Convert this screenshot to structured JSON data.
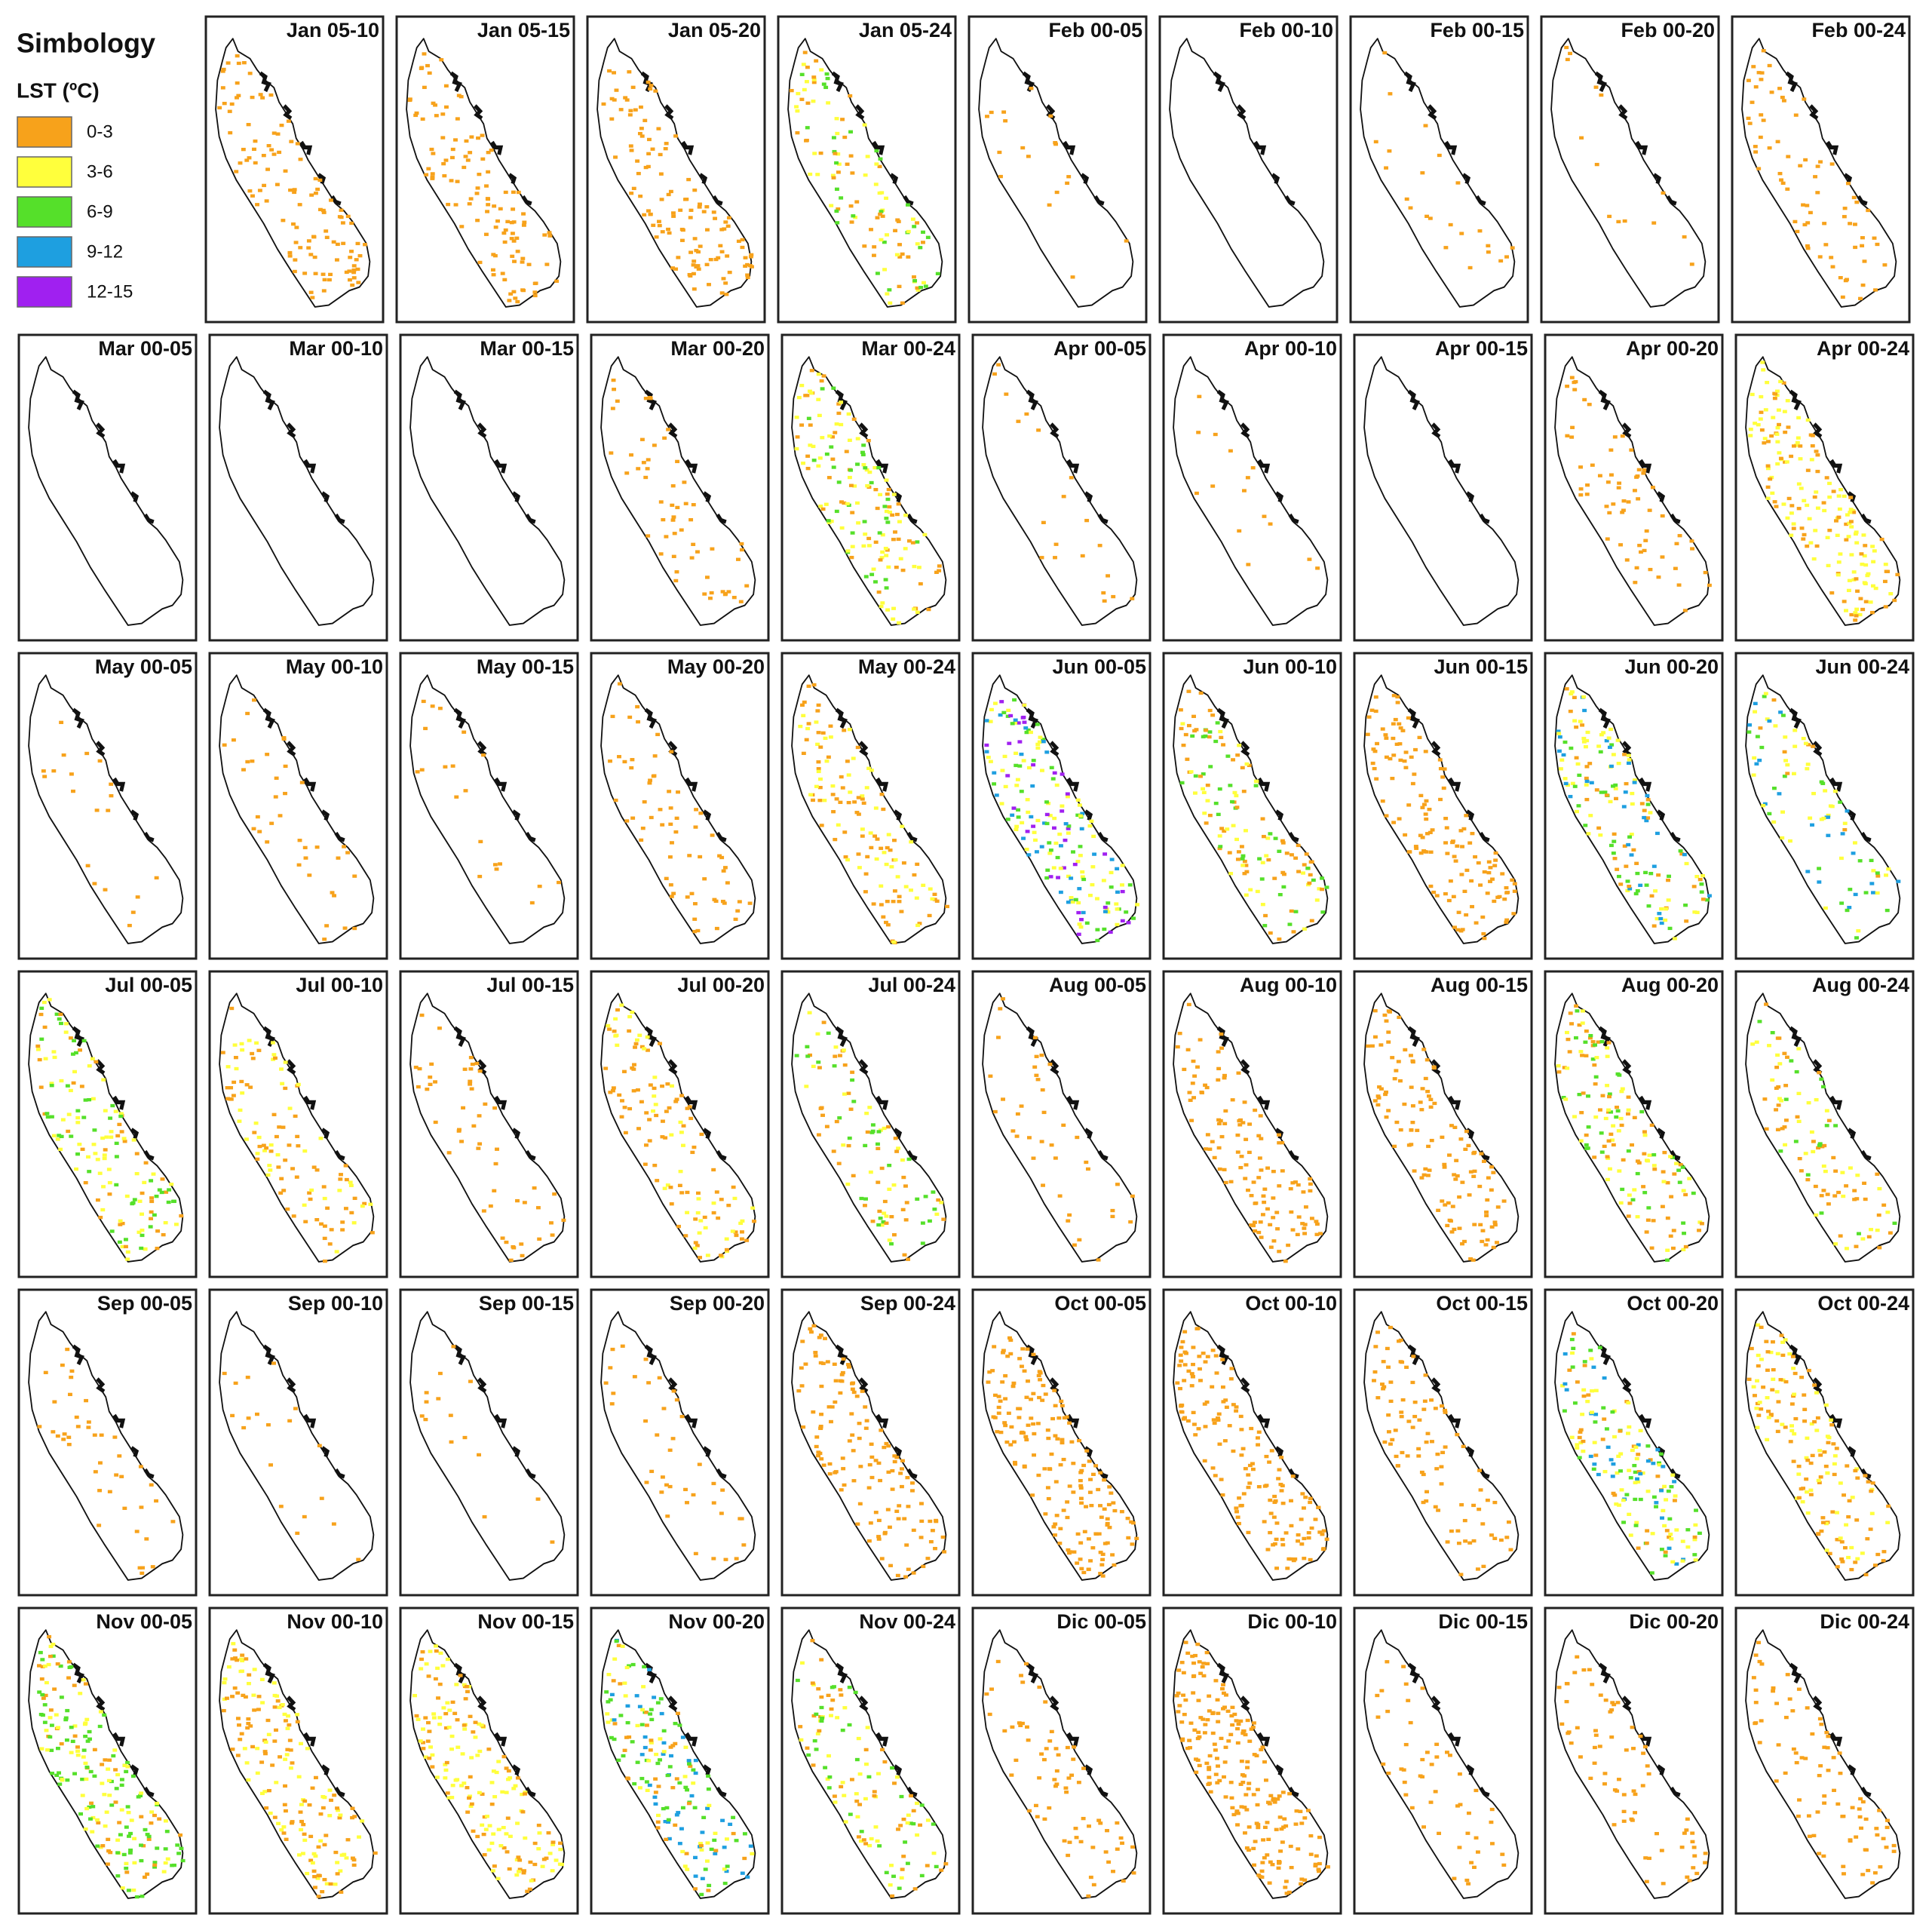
{
  "legend": {
    "title": "Simbology",
    "subtitle": "LST (ºC)",
    "classes": [
      {
        "label": "0-3",
        "color": "#f7a21b"
      },
      {
        "label": "3-6",
        "color": "#ffff3c"
      },
      {
        "label": "6-9",
        "color": "#55e02a"
      },
      {
        "label": "9-12",
        "color": "#1e9fe0"
      },
      {
        "label": "12-15",
        "color": "#a020f0"
      }
    ]
  },
  "panels": [
    {
      "title": "Jan 05-10"
    },
    {
      "title": "Jan 05-15"
    },
    {
      "title": "Jan 05-20"
    },
    {
      "title": "Jan 05-24"
    },
    {
      "title": "Feb 00-05"
    },
    {
      "title": "Feb 00-10"
    },
    {
      "title": "Feb 00-15"
    },
    {
      "title": "Feb 00-20"
    },
    {
      "title": "Feb 00-24"
    },
    {
      "title": "Mar 00-05"
    },
    {
      "title": "Mar 00-10"
    },
    {
      "title": "Mar 00-15"
    },
    {
      "title": "Mar 00-20"
    },
    {
      "title": "Mar 00-24"
    },
    {
      "title": "Apr 00-05"
    },
    {
      "title": "Apr 00-10"
    },
    {
      "title": "Apr 00-15"
    },
    {
      "title": "Apr 00-20"
    },
    {
      "title": "Apr 00-24"
    },
    {
      "title": "May 00-05"
    },
    {
      "title": "May 00-10"
    },
    {
      "title": "May 00-15"
    },
    {
      "title": "May 00-20"
    },
    {
      "title": "May 00-24"
    },
    {
      "title": "Jun 00-05"
    },
    {
      "title": "Jun 00-10"
    },
    {
      "title": "Jun 00-15"
    },
    {
      "title": "Jun 00-20"
    },
    {
      "title": "Jun 00-24"
    },
    {
      "title": "Jul 00-05"
    },
    {
      "title": "Jul 00-10"
    },
    {
      "title": "Jul 00-15"
    },
    {
      "title": "Jul 00-20"
    },
    {
      "title": "Jul 00-24"
    },
    {
      "title": "Aug 00-05"
    },
    {
      "title": "Aug 00-10"
    },
    {
      "title": "Aug 00-15"
    },
    {
      "title": "Aug 00-20"
    },
    {
      "title": "Aug 00-24"
    },
    {
      "title": "Sep 00-05"
    },
    {
      "title": "Sep 00-10"
    },
    {
      "title": "Sep 00-15"
    },
    {
      "title": "Sep 00-20"
    },
    {
      "title": "Sep 00-24"
    },
    {
      "title": "Oct 00-05"
    },
    {
      "title": "Oct 00-10"
    },
    {
      "title": "Oct 00-15"
    },
    {
      "title": "Oct 00-20"
    },
    {
      "title": "Oct 00-24"
    },
    {
      "title": "Nov 00-05"
    },
    {
      "title": "Nov 00-10"
    },
    {
      "title": "Nov 00-15"
    },
    {
      "title": "Nov 00-20"
    },
    {
      "title": "Nov 00-24"
    },
    {
      "title": "Dic 00-05"
    },
    {
      "title": "Dic 00-10"
    },
    {
      "title": "Dic 00-15"
    },
    {
      "title": "Dic 00-20"
    },
    {
      "title": "Dic 00-24"
    }
  ]
}
